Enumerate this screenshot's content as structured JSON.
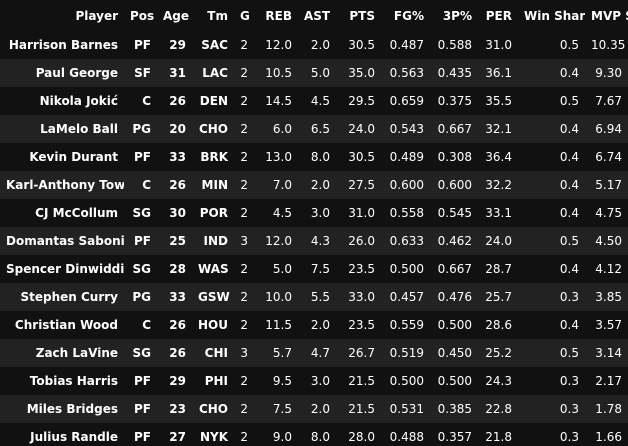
{
  "table": {
    "columns": [
      "Player",
      "Pos",
      "Age",
      "Tm",
      "G",
      "REB",
      "AST",
      "PTS",
      "FG%",
      "3P%",
      "PER",
      "Win Shares",
      "MVP Score"
    ],
    "rows": [
      [
        "Harrison Barnes",
        "PF",
        "29",
        "SAC",
        "2",
        "12.0",
        "2.0",
        "30.5",
        "0.487",
        "0.588",
        "31.0",
        "0.5",
        "10.35"
      ],
      [
        "Paul George",
        "SF",
        "31",
        "LAC",
        "2",
        "10.5",
        "5.0",
        "35.0",
        "0.563",
        "0.435",
        "36.1",
        "0.4",
        "9.30"
      ],
      [
        "Nikola Jokić",
        "C",
        "26",
        "DEN",
        "2",
        "14.5",
        "4.5",
        "29.5",
        "0.659",
        "0.375",
        "35.5",
        "0.5",
        "7.67"
      ],
      [
        "LaMelo Ball",
        "PG",
        "20",
        "CHO",
        "2",
        "6.0",
        "6.5",
        "24.0",
        "0.543",
        "0.667",
        "32.1",
        "0.4",
        "6.94"
      ],
      [
        "Kevin Durant",
        "PF",
        "33",
        "BRK",
        "2",
        "13.0",
        "8.0",
        "30.5",
        "0.489",
        "0.308",
        "36.4",
        "0.4",
        "6.74"
      ],
      [
        "Karl-Anthony Towns",
        "C",
        "26",
        "MIN",
        "2",
        "7.0",
        "2.0",
        "27.5",
        "0.600",
        "0.600",
        "32.2",
        "0.4",
        "5.17"
      ],
      [
        "CJ McCollum",
        "SG",
        "30",
        "POR",
        "2",
        "4.5",
        "3.0",
        "31.0",
        "0.558",
        "0.545",
        "33.1",
        "0.4",
        "4.75"
      ],
      [
        "Domantas Sabonis",
        "PF",
        "25",
        "IND",
        "3",
        "12.0",
        "4.3",
        "26.0",
        "0.633",
        "0.462",
        "24.0",
        "0.5",
        "4.50"
      ],
      [
        "Spencer Dinwiddie",
        "SG",
        "28",
        "WAS",
        "2",
        "5.0",
        "7.5",
        "23.5",
        "0.500",
        "0.667",
        "28.7",
        "0.4",
        "4.12"
      ],
      [
        "Stephen Curry",
        "PG",
        "33",
        "GSW",
        "2",
        "10.0",
        "5.5",
        "33.0",
        "0.457",
        "0.476",
        "25.7",
        "0.3",
        "3.85"
      ],
      [
        "Christian Wood",
        "C",
        "26",
        "HOU",
        "2",
        "11.5",
        "2.0",
        "23.5",
        "0.559",
        "0.500",
        "28.6",
        "0.4",
        "3.57"
      ],
      [
        "Zach LaVine",
        "SG",
        "26",
        "CHI",
        "3",
        "5.7",
        "4.7",
        "26.7",
        "0.519",
        "0.450",
        "25.2",
        "0.5",
        "3.14"
      ],
      [
        "Tobias Harris",
        "PF",
        "29",
        "PHI",
        "2",
        "9.5",
        "3.0",
        "21.5",
        "0.500",
        "0.500",
        "24.3",
        "0.3",
        "2.17"
      ],
      [
        "Miles Bridges",
        "PF",
        "23",
        "CHO",
        "2",
        "7.5",
        "2.0",
        "21.5",
        "0.531",
        "0.385",
        "22.8",
        "0.3",
        "1.78"
      ],
      [
        "Julius Randle",
        "PF",
        "27",
        "NYK",
        "2",
        "9.0",
        "8.0",
        "28.0",
        "0.488",
        "0.357",
        "21.8",
        "0.3",
        "1.66"
      ]
    ]
  }
}
